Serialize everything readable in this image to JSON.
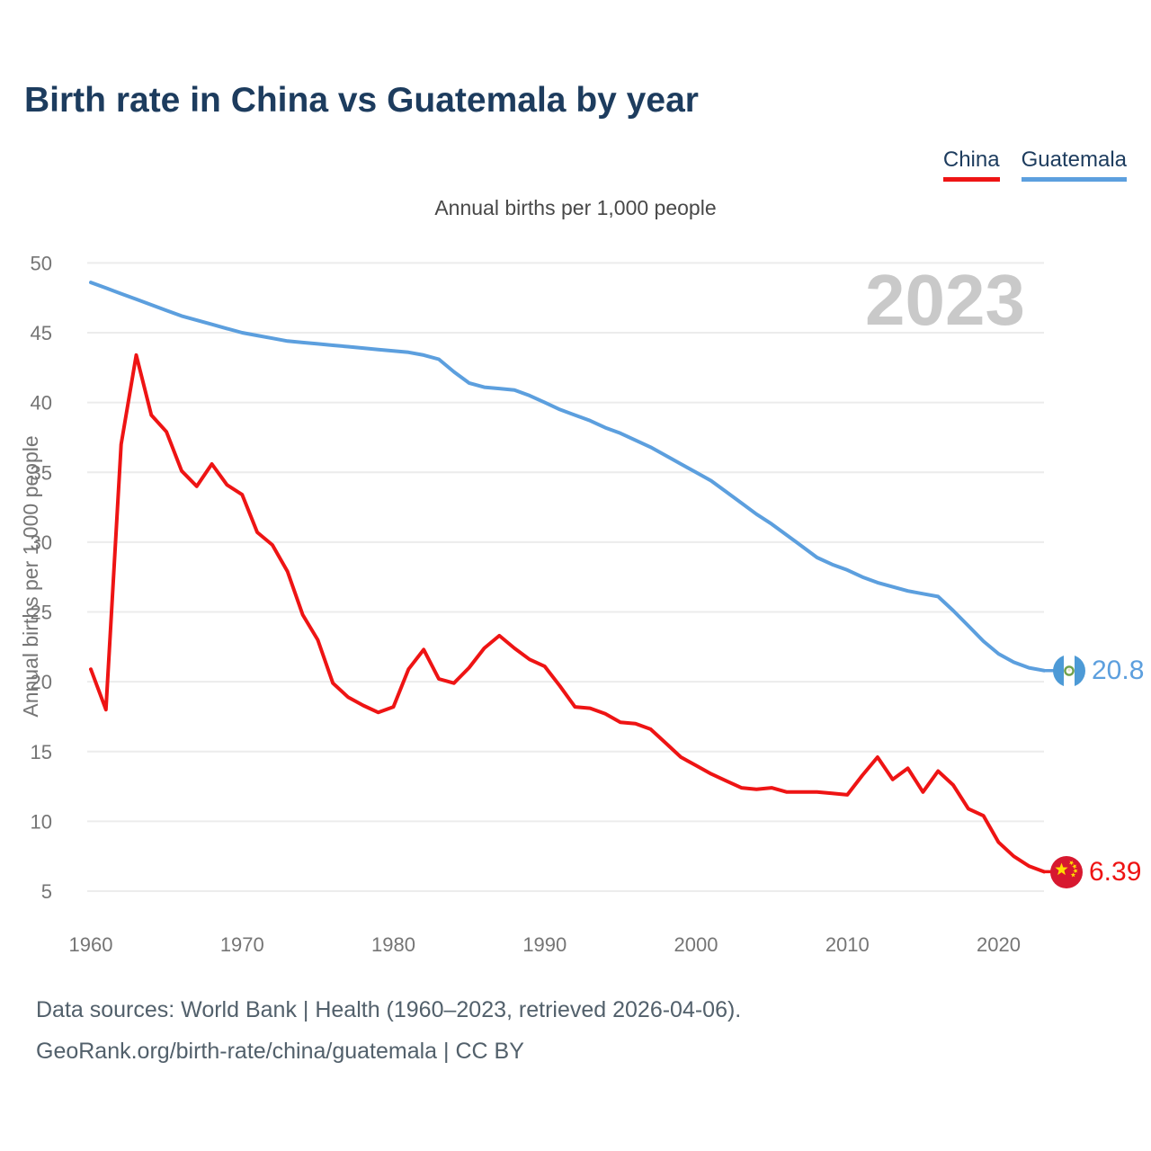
{
  "header": {
    "title": "Birth rate in China vs Guatemala by year"
  },
  "legend": {
    "items": [
      {
        "label": "China",
        "color": "#ee1414"
      },
      {
        "label": "Guatemala",
        "color": "#5c9fde"
      }
    ]
  },
  "chart": {
    "subtitle": "Annual births per 1,000 people",
    "watermark": "2023",
    "y_axis_label": "Annual births per 1,000 people"
  },
  "flags": {
    "china": {
      "background": "#d7182f",
      "star": "#ffde00"
    },
    "guatemala": {
      "stripe": "#4d9ad6",
      "emblem": "#6fa04c"
    }
  },
  "footer": {
    "line1": "Data sources: World Bank | Health (1960–2023, retrieved 2026-04-06).",
    "line2": "GeoRank.org/birth-rate/china/guatemala | CC BY"
  },
  "chart_data": {
    "type": "line",
    "title": "Birth rate in China vs Guatemala by year",
    "subtitle": "Annual births per 1,000 people",
    "ylabel": "Annual births per 1,000 people",
    "x_start": 1960,
    "x_end": 2023,
    "xticks": [
      1960,
      1970,
      1980,
      1990,
      2000,
      2010,
      2020
    ],
    "yticks": [
      5,
      10,
      15,
      20,
      25,
      30,
      35,
      40,
      45,
      50
    ],
    "ylim": [
      5,
      50
    ],
    "grid": "horizontal",
    "legend_position": "top-right",
    "watermark": "2023",
    "gridline_color": "#ececec",
    "tick_color": "#757575",
    "series": [
      {
        "name": "Guatemala",
        "color": "#5c9fde",
        "end_label": "20.8",
        "end_value": 20.8,
        "flag": "guatemala-flag",
        "values": [
          48.6,
          48.2,
          47.8,
          47.4,
          47.0,
          46.6,
          46.2,
          45.9,
          45.6,
          45.3,
          45.0,
          44.8,
          44.6,
          44.4,
          44.3,
          44.2,
          44.1,
          44.0,
          43.9,
          43.8,
          43.7,
          43.6,
          43.4,
          43.1,
          42.2,
          41.4,
          41.1,
          41.0,
          40.9,
          40.5,
          40.0,
          39.5,
          39.1,
          38.7,
          38.2,
          37.8,
          37.3,
          36.8,
          36.2,
          35.6,
          35.0,
          34.4,
          33.6,
          32.8,
          32.0,
          31.3,
          30.5,
          29.7,
          28.9,
          28.4,
          28.0,
          27.5,
          27.1,
          26.8,
          26.5,
          26.3,
          26.1,
          25.1,
          24.0,
          22.9,
          22.0,
          21.4,
          21.0,
          20.8
        ]
      },
      {
        "name": "China",
        "color": "#ee1414",
        "end_label": "6.39",
        "end_value": 6.39,
        "flag": "china-flag",
        "values": [
          20.9,
          18.0,
          37.0,
          43.4,
          39.1,
          37.9,
          35.1,
          34.0,
          35.6,
          34.1,
          33.4,
          30.7,
          29.8,
          27.9,
          24.8,
          23.0,
          19.9,
          18.9,
          18.3,
          17.8,
          18.2,
          20.9,
          22.3,
          20.2,
          19.9,
          21.0,
          22.4,
          23.3,
          22.4,
          21.6,
          21.1,
          19.7,
          18.2,
          18.1,
          17.7,
          17.1,
          17.0,
          16.6,
          15.6,
          14.6,
          14.0,
          13.4,
          12.9,
          12.4,
          12.3,
          12.4,
          12.1,
          12.1,
          12.1,
          12.0,
          11.9,
          13.3,
          14.6,
          13.0,
          13.8,
          12.1,
          13.6,
          12.6,
          10.9,
          10.4,
          8.5,
          7.5,
          6.8,
          6.39
        ]
      }
    ]
  }
}
